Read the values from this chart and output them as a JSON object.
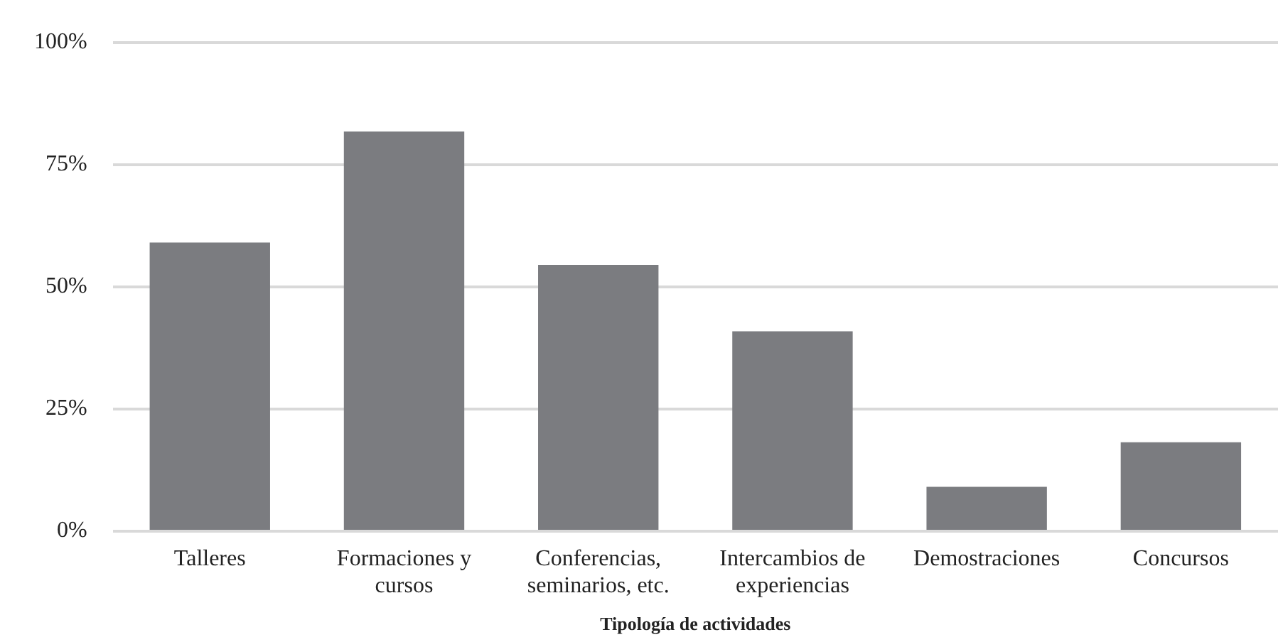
{
  "chart_data": {
    "type": "bar",
    "xlabel": "Tipología de actividades",
    "categories": [
      "Talleres",
      "Formaciones y cursos",
      "Conferencias, seminarios, etc.",
      "Intercambios de experiencias",
      "Demostraciones",
      "Concursos"
    ],
    "values": [
      59.1,
      81.8,
      54.5,
      40.9,
      9.1,
      18.2
    ],
    "color": "#7b7c80",
    "ylim": [
      0,
      100
    ],
    "yticks": [
      {
        "value": 0,
        "label": "0%"
      },
      {
        "value": 25,
        "label": "25%"
      },
      {
        "value": 50,
        "label": "50%"
      },
      {
        "value": 75,
        "label": "75%"
      },
      {
        "value": 100,
        "label": "100%"
      }
    ],
    "grid": "y",
    "legend": false
  }
}
